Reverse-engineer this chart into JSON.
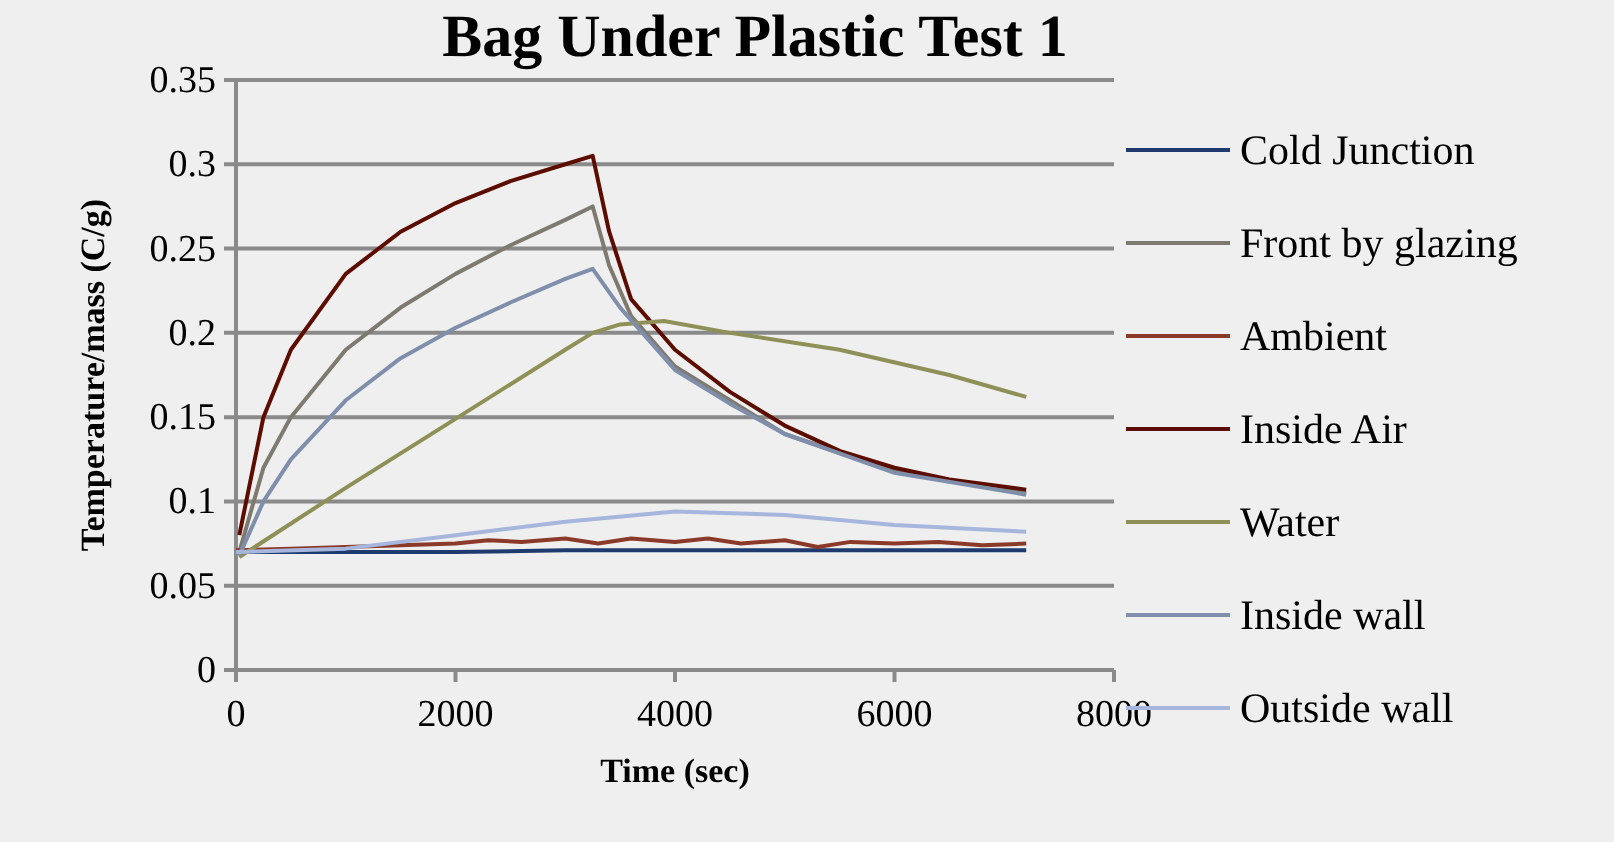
{
  "chart_data": {
    "type": "line",
    "title": "Bag Under Plastic Test 1",
    "xlabel": "Time (sec)",
    "ylabel": "Temperature/mass (C/g)",
    "xlim": [
      0,
      8000
    ],
    "xticks": [
      0,
      2000,
      4000,
      6000,
      8000
    ],
    "ylim": [
      0,
      0.35
    ],
    "yticks": [
      0,
      0.05,
      0.1,
      0.15,
      0.2,
      0.25,
      0.3,
      0.35
    ],
    "grid": "y",
    "legend": "right",
    "marker": "none",
    "line_style": "solid",
    "series": [
      {
        "name": "Cold Junction",
        "color": "#1f3a6e",
        "x": [
          0,
          1000,
          2000,
          3000,
          4000,
          5000,
          6000,
          7200
        ],
        "values": [
          0.07,
          0.07,
          0.07,
          0.071,
          0.071,
          0.071,
          0.071,
          0.071
        ]
      },
      {
        "name": "Front by glazing",
        "color": "#7f7a70",
        "x": [
          30,
          250,
          500,
          1000,
          1500,
          2000,
          2500,
          3000,
          3250,
          3400,
          3600,
          4000,
          4500,
          5000,
          6000,
          7200
        ],
        "values": [
          0.07,
          0.12,
          0.15,
          0.19,
          0.215,
          0.235,
          0.252,
          0.267,
          0.275,
          0.24,
          0.21,
          0.18,
          0.16,
          0.14,
          0.118,
          0.105
        ]
      },
      {
        "name": "Ambient",
        "color": "#8b3a2a",
        "x": [
          0,
          500,
          1000,
          1500,
          2000,
          2300,
          2600,
          3000,
          3300,
          3600,
          4000,
          4300,
          4600,
          5000,
          5300,
          5600,
          6000,
          6400,
          6800,
          7200
        ],
        "values": [
          0.071,
          0.072,
          0.073,
          0.074,
          0.075,
          0.077,
          0.076,
          0.078,
          0.075,
          0.078,
          0.076,
          0.078,
          0.075,
          0.077,
          0.073,
          0.076,
          0.075,
          0.076,
          0.074,
          0.075
        ]
      },
      {
        "name": "Inside Air",
        "color": "#5c0d00",
        "x": [
          30,
          250,
          500,
          1000,
          1500,
          2000,
          2500,
          3000,
          3250,
          3400,
          3600,
          4000,
          4500,
          5000,
          5500,
          6000,
          6500,
          7200
        ],
        "values": [
          0.08,
          0.15,
          0.19,
          0.235,
          0.26,
          0.277,
          0.29,
          0.3,
          0.305,
          0.26,
          0.22,
          0.19,
          0.165,
          0.145,
          0.13,
          0.12,
          0.113,
          0.107
        ]
      },
      {
        "name": "Water",
        "color": "#8f9058",
        "x": [
          30,
          1000,
          2000,
          3000,
          3250,
          3500,
          3900,
          4500,
          5500,
          6500,
          7200
        ],
        "values": [
          0.067,
          0.108,
          0.149,
          0.19,
          0.2,
          0.205,
          0.207,
          0.2,
          0.19,
          0.175,
          0.162
        ]
      },
      {
        "name": "Inside wall",
        "color": "#7f8fab",
        "x": [
          30,
          250,
          500,
          1000,
          1500,
          2000,
          2500,
          3000,
          3250,
          3500,
          4000,
          4500,
          5000,
          6000,
          7200
        ],
        "values": [
          0.068,
          0.1,
          0.125,
          0.16,
          0.185,
          0.203,
          0.218,
          0.232,
          0.238,
          0.215,
          0.178,
          0.158,
          0.14,
          0.117,
          0.104
        ]
      },
      {
        "name": "Outside wall",
        "color": "#a6b6dc",
        "x": [
          0,
          1000,
          2000,
          3000,
          4000,
          5000,
          6000,
          7200
        ],
        "values": [
          0.07,
          0.072,
          0.08,
          0.088,
          0.094,
          0.092,
          0.086,
          0.082
        ]
      }
    ]
  }
}
